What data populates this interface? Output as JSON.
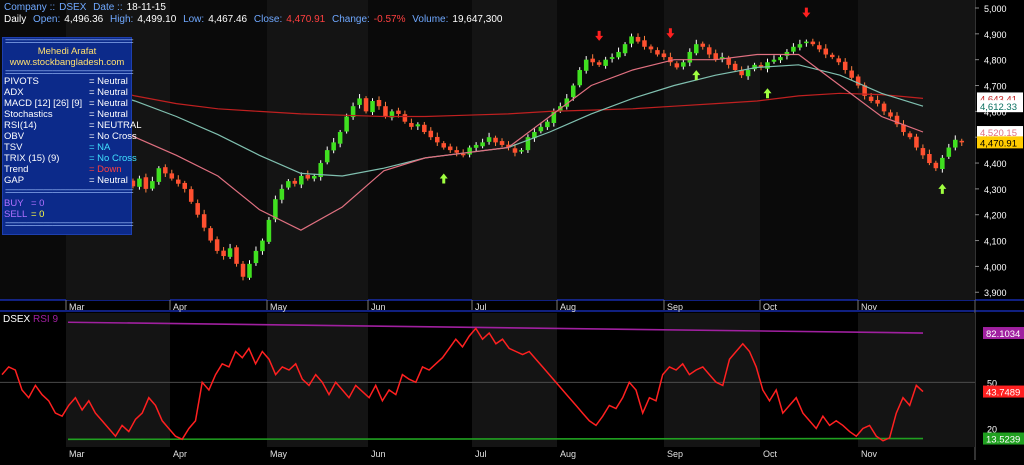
{
  "header": {
    "company_label": "Company ::",
    "company": "DSEX",
    "date_label": "Date ::",
    "date": "18-11-15",
    "period": "Daily",
    "open_label": "Open:",
    "open": "4,496.36",
    "high_label": "High:",
    "high": "4,499.10",
    "low_label": "Low:",
    "low": "4,467.46",
    "close_label": "Close:",
    "close": "4,470.91",
    "change_label": "Change:",
    "change": "-0.57%",
    "volume_label": "Volume:",
    "volume": "19,647,300"
  },
  "panel": {
    "divider": "==============================",
    "author": "Mehedi Arafat",
    "website": "www.stockbangladesh.com",
    "signals": [
      {
        "name": "PIVOTS",
        "value": "= Neutral"
      },
      {
        "name": "ADX",
        "value": "= Neutral"
      },
      {
        "name": "MACD [12] [26] [9]",
        "value": "= Neutral"
      },
      {
        "name": "Stochastics",
        "value": "= Neutral"
      },
      {
        "name": "RSI(14)",
        "value": "= NEUTRAL"
      },
      {
        "name": "OBV",
        "value": "= No Cross"
      },
      {
        "name": "TSV",
        "value": "= NA"
      },
      {
        "name": "TRIX (15) (9)",
        "value": "= No Cross"
      },
      {
        "name": "Trend",
        "value": "= Down"
      },
      {
        "name": "GAP",
        "value": "= Neutral"
      }
    ],
    "buy_label": "BUY",
    "buy": "= 0",
    "sell_label": "SELL",
    "sell": "= 0",
    "colors": {
      "bg": "#0c2a8a",
      "buy": "#b070ff",
      "sell": "#ffff40",
      "nocross": "#40e0ff",
      "down": "#ff4040",
      "neutral": "#ffffff"
    }
  },
  "rsi_header": {
    "name": "DSEX",
    "indicator": "RSI 9"
  },
  "chart_data": [
    {
      "type": "candlestick",
      "x_axis": {
        "ticks": [
          "Mar",
          "Apr",
          "May",
          "Jun",
          "Jul",
          "Aug",
          "Sep",
          "Oct",
          "Nov"
        ]
      },
      "y_axis": {
        "range": [
          3870,
          5000
        ],
        "ticks": [
          3900,
          4000,
          4100,
          4200,
          4300,
          4400,
          4500,
          4600,
          4700,
          4800,
          4900,
          5000
        ],
        "tick_labels": [
          "3,900",
          "4,000",
          "4,100",
          "4,200",
          "4,300",
          "4,400",
          "4,500",
          "4,600",
          "4,700",
          "4,800",
          "4,900",
          "5,000"
        ]
      },
      "closes": [
        4560,
        4545,
        4560,
        4540,
        4520,
        4500,
        4470,
        4440,
        4400,
        4380,
        4340,
        4330,
        4310,
        4340,
        4300,
        4330,
        4380,
        4360,
        4340,
        4320,
        4300,
        4250,
        4200,
        4150,
        4100,
        4060,
        4040,
        4070,
        4010,
        3960,
        4010,
        4060,
        4100,
        4180,
        4260,
        4300,
        4330,
        4320,
        4350,
        4340,
        4350,
        4400,
        4450,
        4480,
        4520,
        4580,
        4620,
        4650,
        4600,
        4640,
        4620,
        4580,
        4600,
        4590,
        4560,
        4540,
        4550,
        4520,
        4500,
        4480,
        4460,
        4450,
        4440,
        4430,
        4460,
        4470,
        4480,
        4500,
        4480,
        4470,
        4460,
        4440,
        4450,
        4500,
        4520,
        4540,
        4560,
        4600,
        4620,
        4650,
        4700,
        4760,
        4800,
        4790,
        4780,
        4800,
        4810,
        4830,
        4860,
        4890,
        4870,
        4850,
        4840,
        4820,
        4810,
        4790,
        4770,
        4790,
        4830,
        4860,
        4850,
        4820,
        4800,
        4810,
        4780,
        4760,
        4740,
        4760,
        4780,
        4770,
        4790,
        4800,
        4810,
        4830,
        4850,
        4860,
        4870,
        4860,
        4840,
        4820,
        4810,
        4790,
        4760,
        4730,
        4700,
        4660,
        4640,
        4630,
        4600,
        4580,
        4550,
        4520,
        4500,
        4460,
        4430,
        4400,
        4380,
        4420,
        4460,
        4490,
        4480
      ],
      "overlays": [
        {
          "name": "long_ma",
          "color": "#c02020",
          "last_label": "4,643.41",
          "points": [
            4730,
            4700,
            4660,
            4630,
            4610,
            4600,
            4590,
            4585,
            4580,
            4580,
            4585,
            4590,
            4600,
            4605,
            4610,
            4620,
            4630,
            4640,
            4660,
            4670,
            4665,
            4650
          ]
        },
        {
          "name": "mid_ma",
          "color": "#80c0b0",
          "last_label": "4,612.33",
          "points": [
            4720,
            4690,
            4640,
            4580,
            4510,
            4430,
            4360,
            4350,
            4380,
            4420,
            4440,
            4460,
            4520,
            4590,
            4650,
            4700,
            4740,
            4770,
            4780,
            4740,
            4670,
            4620
          ]
        },
        {
          "name": "short_ma",
          "color": "#e07080",
          "last_label": "4,520.15",
          "points": [
            4620,
            4580,
            4500,
            4430,
            4350,
            4220,
            4140,
            4230,
            4370,
            4420,
            4440,
            4460,
            4580,
            4700,
            4760,
            4800,
            4800,
            4820,
            4820,
            4700,
            4580,
            4520
          ]
        }
      ],
      "last_close_label": "4,470.91",
      "up_arrows": [
        {
          "bar": 60
        },
        {
          "bar": 99
        },
        {
          "bar": 110
        },
        {
          "bar": 137
        }
      ],
      "down_arrows": [
        {
          "bar": 84
        },
        {
          "bar": 95
        },
        {
          "bar": 116
        }
      ]
    },
    {
      "type": "line",
      "title": "RSI 9",
      "y_axis": {
        "range": [
          8,
          95
        ],
        "ticks": [
          20,
          50
        ],
        "tick_labels": [
          "20",
          "50"
        ]
      },
      "rsi": [
        55,
        60,
        58,
        45,
        40,
        48,
        42,
        38,
        30,
        28,
        35,
        40,
        32,
        38,
        30,
        25,
        20,
        15,
        22,
        18,
        26,
        30,
        40,
        35,
        25,
        20,
        15,
        13,
        20,
        25,
        50,
        45,
        55,
        62,
        60,
        70,
        66,
        72,
        62,
        70,
        65,
        55,
        60,
        58,
        62,
        52,
        48,
        55,
        50,
        42,
        50,
        45,
        40,
        48,
        44,
        40,
        48,
        38,
        45,
        42,
        55,
        52,
        50,
        60,
        58,
        62,
        66,
        72,
        78,
        73,
        80,
        85,
        78,
        82,
        75,
        78,
        72,
        70,
        68,
        70,
        65,
        60,
        55,
        50,
        45,
        40,
        35,
        30,
        25,
        22,
        28,
        35,
        33,
        40,
        50,
        45,
        30,
        40,
        38,
        55,
        60,
        58,
        62,
        55,
        58,
        60,
        55,
        50,
        48,
        65,
        70,
        75,
        70,
        60,
        45,
        38,
        45,
        30,
        35,
        40,
        30,
        25,
        20,
        28,
        22,
        25,
        22,
        18,
        15,
        20,
        22,
        15,
        12,
        14,
        30,
        40,
        35,
        48,
        44
      ],
      "series": [
        {
          "name": "upper_band",
          "color": "#a020a0",
          "range": [
            89,
            82
          ],
          "label": "82.1034"
        },
        {
          "name": "lower_band",
          "color": "#20a020",
          "range": [
            13,
            13.5
          ],
          "label": "13.5239"
        }
      ],
      "last_label": "43.7489"
    }
  ]
}
